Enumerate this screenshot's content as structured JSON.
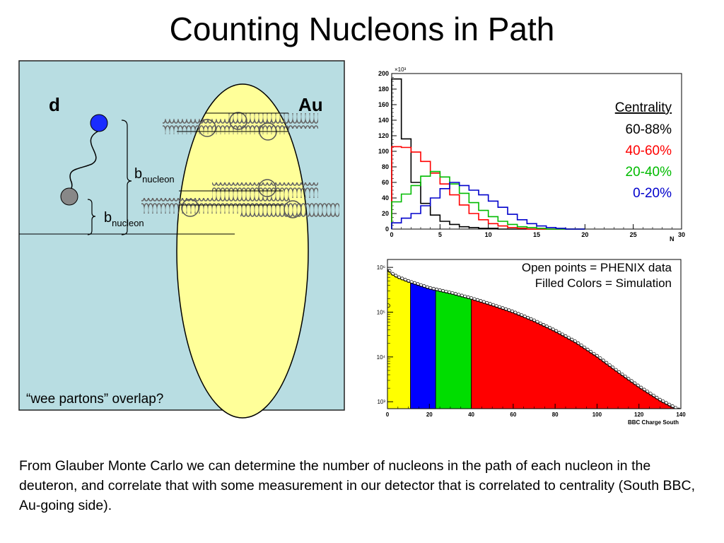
{
  "slide": {
    "title": "Counting Nucleons in Path",
    "caption": "From Glauber Monte Carlo we can determine the number of nucleons in the path of each nucleon in the deuteron, and correlate that with some measurement in our detector that is correlated to centrality (South BBC, Au-going side)."
  },
  "diagram": {
    "label_d": "d",
    "label_au": "Au",
    "b_main": "b",
    "b_sub": "nucleon",
    "wee_note": "“wee partons” overlap?",
    "colors": {
      "panel": "#b8dde2",
      "nucleus": "#ffff99",
      "deuteron_top": "#1a2cff",
      "deuteron_bottom": "#888888"
    }
  },
  "chart_data": [
    {
      "type": "line",
      "title": "",
      "xlabel": "N",
      "ylabel": "",
      "y_exponent_label": "×10³",
      "xlim": [
        0,
        30
      ],
      "ylim": [
        0,
        200
      ],
      "x_ticks": [
        "0",
        "5",
        "10",
        "15",
        "20",
        "25",
        "30"
      ],
      "y_ticks": [
        "0",
        "20",
        "40",
        "60",
        "80",
        "100",
        "120",
        "140",
        "160",
        "180",
        "200"
      ],
      "legend_title": "Centrality",
      "legend_position": "top-right",
      "bin_edges": [
        0,
        1,
        2,
        3,
        4,
        5,
        6,
        7,
        8,
        9,
        10,
        11,
        12,
        13,
        14,
        15,
        16,
        17,
        18,
        19,
        20
      ],
      "series": [
        {
          "name": "60-88%",
          "color": "#000000",
          "values": [
            193,
            116,
            60,
            33,
            18,
            10,
            6,
            3,
            2,
            1,
            1,
            0,
            0,
            0,
            0,
            0,
            0,
            0,
            0,
            0
          ]
        },
        {
          "name": "40-60%",
          "color": "#ff0000",
          "values": [
            106,
            105,
            99,
            87,
            72,
            58,
            44,
            31,
            20,
            12,
            7,
            4,
            2,
            1,
            0,
            0,
            0,
            0,
            0,
            0
          ]
        },
        {
          "name": "20-40%",
          "color": "#00bb00",
          "values": [
            35,
            45,
            56,
            68,
            74,
            67,
            58,
            46,
            34,
            24,
            16,
            10,
            6,
            3,
            2,
            1,
            0,
            0,
            0,
            0
          ]
        },
        {
          "name": "0-20%",
          "color": "#0000cc",
          "values": [
            8,
            14,
            20,
            30,
            40,
            52,
            60,
            56,
            50,
            44,
            36,
            28,
            19,
            12,
            7,
            4,
            2,
            1,
            0,
            0
          ]
        }
      ]
    },
    {
      "type": "area",
      "title": "",
      "xlabel": "BBC Charge South",
      "ylabel": "",
      "xlim": [
        0,
        140
      ],
      "y_scale": "log",
      "ylim": [
        700,
        1500000
      ],
      "x_ticks": [
        "0",
        "20",
        "40",
        "60",
        "80",
        "100",
        "120",
        "140"
      ],
      "y_ticks": [
        "10³",
        "10⁴",
        "10⁵",
        "10⁶"
      ],
      "legend_entries": [
        "Open points = PHENIX data",
        "Filled Colors = Simulation"
      ],
      "legend_position": "top-right",
      "bands": [
        {
          "from": 0,
          "to": 11,
          "color": "#ffff00"
        },
        {
          "from": 11,
          "to": 23,
          "color": "#0000ff"
        },
        {
          "from": 23,
          "to": 40,
          "color": "#00dd00"
        },
        {
          "from": 40,
          "to": 140,
          "color": "#ff0000"
        }
      ],
      "curve": {
        "x": [
          0,
          2,
          5,
          10,
          20,
          30,
          40,
          50,
          60,
          70,
          80,
          90,
          100,
          110,
          120,
          130,
          140
        ],
        "y": [
          900000,
          700000,
          580000,
          470000,
          330000,
          260000,
          195000,
          140000,
          97000,
          62000,
          37000,
          20500,
          10000,
          4500,
          2100,
          1050,
          600
        ]
      }
    }
  ]
}
